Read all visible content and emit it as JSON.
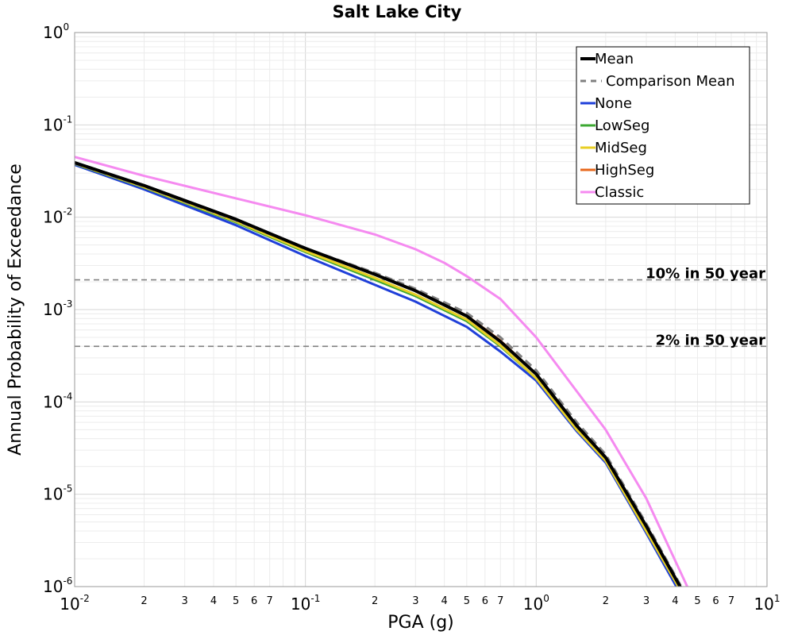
{
  "chart_data": {
    "type": "line",
    "title": "Salt Lake City",
    "xlabel": "PGA (g)",
    "ylabel": "Annual Probability of Exceedance",
    "x_scale": "log",
    "y_scale": "log",
    "xlim": [
      0.01,
      10
    ],
    "ylim": [
      1e-06,
      1
    ],
    "grid": true,
    "legend_position": "top-right",
    "x_ticks": {
      "major": [
        {
          "value": 0.01,
          "base": "10",
          "exp": "-2"
        },
        {
          "value": 0.1,
          "base": "10",
          "exp": "-1"
        },
        {
          "value": 1,
          "base": "10",
          "exp": "0"
        },
        {
          "value": 10,
          "base": "10",
          "exp": "1"
        }
      ],
      "minor_labels": [
        "2",
        "3",
        "4",
        "5",
        "6",
        "7"
      ]
    },
    "y_ticks": {
      "major": [
        {
          "value": 1,
          "base": "10",
          "exp": "0"
        },
        {
          "value": 0.1,
          "base": "10",
          "exp": "-1"
        },
        {
          "value": 0.01,
          "base": "10",
          "exp": "-2"
        },
        {
          "value": 0.001,
          "base": "10",
          "exp": "-3"
        },
        {
          "value": 0.0001,
          "base": "10",
          "exp": "-4"
        },
        {
          "value": 1e-05,
          "base": "10",
          "exp": "-5"
        },
        {
          "value": 1e-06,
          "base": "10",
          "exp": "-6"
        }
      ]
    },
    "reference_lines": [
      {
        "label": "10% in 50 year",
        "y": 0.0021,
        "color": "#808080"
      },
      {
        "label": "2% in 50 year",
        "y": 0.0004,
        "color": "#808080"
      }
    ],
    "series": [
      {
        "name": "Mean",
        "color": "#000000",
        "style": "solid",
        "width": 4,
        "points": [
          [
            0.01,
            0.039
          ],
          [
            0.02,
            0.022
          ],
          [
            0.05,
            0.0095
          ],
          [
            0.1,
            0.0046
          ],
          [
            0.2,
            0.0024
          ],
          [
            0.3,
            0.0016
          ],
          [
            0.5,
            0.00085
          ],
          [
            0.7,
            0.00045
          ],
          [
            1.0,
            0.0002
          ],
          [
            1.5,
            5.5e-05
          ],
          [
            2.0,
            2.5e-05
          ],
          [
            3.0,
            4.5e-06
          ],
          [
            4.3,
            9e-07
          ]
        ]
      },
      {
        "name": "Comparison Mean",
        "color": "#808080",
        "style": "dashed",
        "width": 3,
        "points": [
          [
            0.01,
            0.038
          ],
          [
            0.02,
            0.0215
          ],
          [
            0.05,
            0.0092
          ],
          [
            0.1,
            0.0046
          ],
          [
            0.2,
            0.0025
          ],
          [
            0.3,
            0.00168
          ],
          [
            0.5,
            0.00092
          ],
          [
            0.7,
            0.0005
          ],
          [
            1.0,
            0.00022
          ],
          [
            1.5,
            6e-05
          ],
          [
            2.0,
            2.7e-05
          ],
          [
            3.0,
            4.8e-06
          ],
          [
            4.3,
            9.5e-07
          ]
        ]
      },
      {
        "name": "None",
        "color": "#1f3fd9",
        "style": "solid",
        "width": 3,
        "points": [
          [
            0.01,
            0.037
          ],
          [
            0.02,
            0.02
          ],
          [
            0.05,
            0.0082
          ],
          [
            0.1,
            0.0038
          ],
          [
            0.2,
            0.00185
          ],
          [
            0.3,
            0.00122
          ],
          [
            0.5,
            0.00065
          ],
          [
            0.7,
            0.00035
          ],
          [
            1.0,
            0.00017
          ],
          [
            1.5,
            4.8e-05
          ],
          [
            2.0,
            2.2e-05
          ],
          [
            3.0,
            3.8e-06
          ],
          [
            4.2,
            8.5e-07
          ]
        ]
      },
      {
        "name": "LowSeg",
        "color": "#3ca832",
        "style": "solid",
        "width": 3,
        "points": [
          [
            0.01,
            0.0378
          ],
          [
            0.02,
            0.021
          ],
          [
            0.05,
            0.0088
          ],
          [
            0.1,
            0.0042
          ],
          [
            0.2,
            0.0021
          ],
          [
            0.3,
            0.0014
          ],
          [
            0.5,
            0.00075
          ],
          [
            0.7,
            0.0004
          ],
          [
            1.0,
            0.00018
          ],
          [
            1.5,
            5e-05
          ],
          [
            2.0,
            2.3e-05
          ],
          [
            3.0,
            4e-06
          ],
          [
            4.25,
            8.8e-07
          ]
        ]
      },
      {
        "name": "MidSeg",
        "color": "#e8cf24",
        "style": "solid",
        "width": 3,
        "points": [
          [
            0.01,
            0.0382
          ],
          [
            0.02,
            0.0212
          ],
          [
            0.05,
            0.009
          ],
          [
            0.1,
            0.0043
          ],
          [
            0.2,
            0.0022
          ],
          [
            0.3,
            0.00145
          ],
          [
            0.5,
            0.00078
          ],
          [
            0.7,
            0.00041
          ],
          [
            1.0,
            0.00018
          ],
          [
            1.5,
            5e-05
          ],
          [
            2.0,
            2.3e-05
          ],
          [
            3.0,
            4e-06
          ],
          [
            4.25,
            8.8e-07
          ]
        ]
      },
      {
        "name": "HighSeg",
        "color": "#e8681c",
        "style": "solid",
        "width": 3,
        "points": [
          [
            0.01,
            0.0388
          ],
          [
            0.02,
            0.0218
          ],
          [
            0.05,
            0.0094
          ],
          [
            0.1,
            0.0046
          ],
          [
            0.2,
            0.0024
          ],
          [
            0.3,
            0.0016
          ],
          [
            0.5,
            0.00086
          ],
          [
            0.7,
            0.00046
          ],
          [
            1.0,
            0.0002
          ],
          [
            1.5,
            5.5e-05
          ],
          [
            2.0,
            2.5e-05
          ],
          [
            3.0,
            4.5e-06
          ],
          [
            4.3,
            9e-07
          ]
        ]
      },
      {
        "name": "Classic",
        "color": "#f58af0",
        "style": "solid",
        "width": 3,
        "points": [
          [
            0.01,
            0.045
          ],
          [
            0.02,
            0.028
          ],
          [
            0.05,
            0.016
          ],
          [
            0.1,
            0.0105
          ],
          [
            0.2,
            0.0065
          ],
          [
            0.3,
            0.0045
          ],
          [
            0.4,
            0.0032
          ],
          [
            0.5,
            0.0023
          ],
          [
            0.7,
            0.0013
          ],
          [
            1.0,
            0.0005
          ],
          [
            1.5,
            0.00013
          ],
          [
            2.0,
            5e-05
          ],
          [
            3.0,
            9e-06
          ],
          [
            4.6,
            9e-07
          ]
        ]
      }
    ]
  }
}
